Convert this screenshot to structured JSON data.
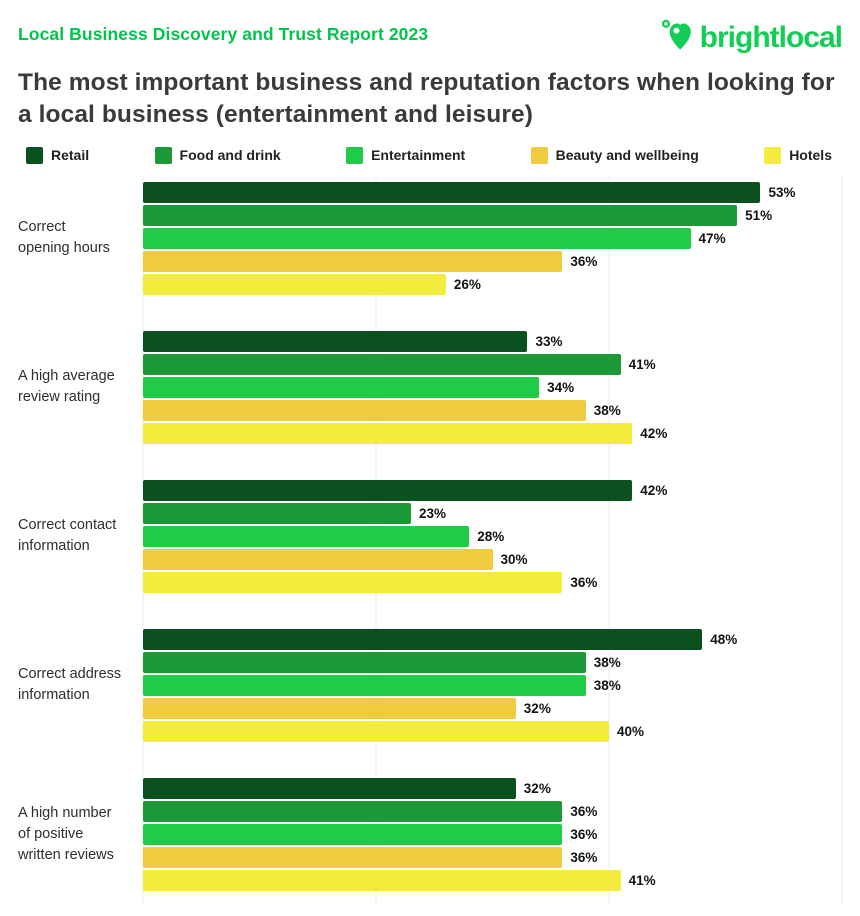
{
  "header": {
    "report_title": "Local Business Discovery and Trust Report 2023",
    "brand": "brightlocal"
  },
  "colors": {
    "report_title_green": "#00c44c",
    "logo_green": "#12ce55",
    "title_gray": "#3a3a3a",
    "gridline": "#ebebeb"
  },
  "title": "The most important business and reputation factors when looking for a local business (entertainment and leisure)",
  "chart_data": {
    "type": "bar",
    "orientation": "horizontal",
    "title": "The most important business and reputation factors when looking for a local business (entertainment and leisure)",
    "xlabel": "",
    "ylabel": "",
    "xlim": [
      0,
      60
    ],
    "x_ticks": [
      "0%",
      "20%",
      "40%",
      "60%"
    ],
    "grid": "vertical",
    "legend_position": "top",
    "value_suffix": "%",
    "categories": [
      {
        "label": "Correct opening hours",
        "lines": [
          "Correct",
          "opening hours"
        ]
      },
      {
        "label": "A high average review rating",
        "lines": [
          "A high average",
          "review rating"
        ]
      },
      {
        "label": "Correct contact information",
        "lines": [
          "Correct contact",
          "information"
        ]
      },
      {
        "label": "Correct address information",
        "lines": [
          "Correct address",
          "information"
        ]
      },
      {
        "label": "A high number of positive written reviews",
        "lines": [
          "A high number",
          "of positive",
          "written reviews"
        ]
      }
    ],
    "series": [
      {
        "name": "Retail",
        "color": "#0b511f",
        "values": [
          53,
          33,
          42,
          48,
          32
        ]
      },
      {
        "name": "Food and drink",
        "color": "#1c9836",
        "values": [
          51,
          41,
          23,
          38,
          36
        ]
      },
      {
        "name": "Entertainment",
        "color": "#20cc46",
        "values": [
          47,
          34,
          28,
          38,
          36
        ]
      },
      {
        "name": "Beauty and wellbeing",
        "color": "#efcc3d",
        "values": [
          36,
          38,
          30,
          32,
          36
        ]
      },
      {
        "name": "Hotels",
        "color": "#f3ec3c",
        "values": [
          26,
          42,
          36,
          40,
          41
        ]
      }
    ]
  }
}
